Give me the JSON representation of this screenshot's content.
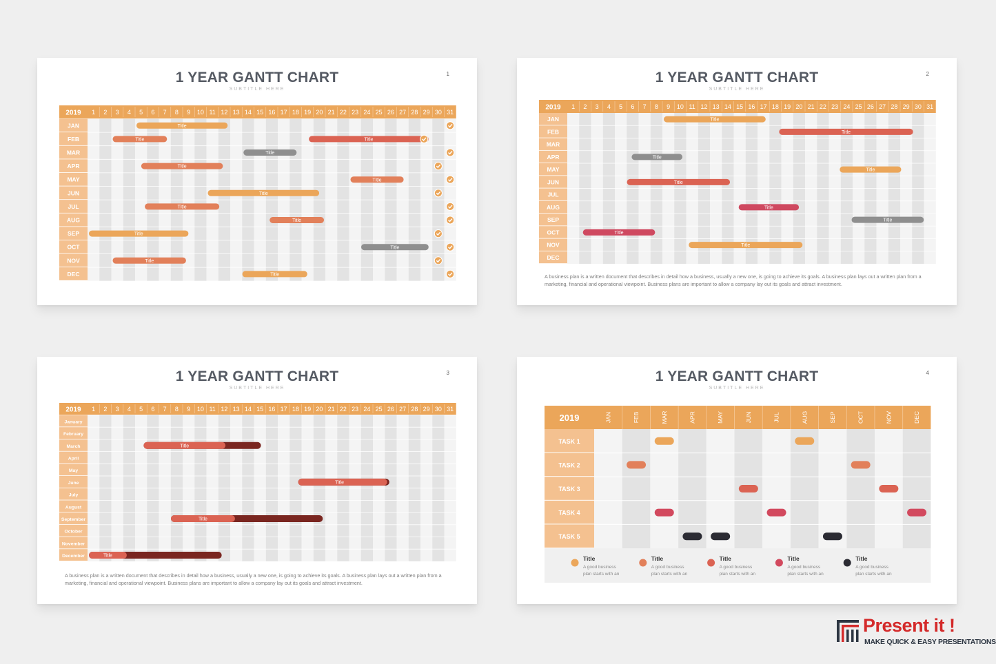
{
  "slides": [
    {
      "title": "1 YEAR GANTT CHART",
      "subtitle": "SUBTITLE HERE",
      "number": "1",
      "description": ""
    },
    {
      "title": "1 YEAR GANTT CHART",
      "subtitle": "SUBTITLE HERE",
      "number": "2",
      "description": "A business plan is a written document that describes in detail how a business, usually a new one, is going to achieve its goals. A business plan lays out a written plan from a marketing, financial and operational viewpoint. Business plans are important to allow a company lay out its goals and attract investment."
    },
    {
      "title": "1 YEAR GANTT CHART",
      "subtitle": "SUBTITLE HERE",
      "number": "3",
      "description": "A business plan is a written document that describes in detail how a business, usually a new one, is going to achieve its goals. A business plan lays out a written plan from a marketing, financial and operational viewpoint. Business plans are important to allow a company lay out its goals and attract investment."
    },
    {
      "title": "1 YEAR GANTT CHART",
      "subtitle": "SUBTITLE HERE",
      "number": "4",
      "description": ""
    }
  ],
  "colors": {
    "header": "#eba65a",
    "label_bg": "#f4c190",
    "label_text": "#ffffff",
    "orange": "#eba65a",
    "coral": "#e2805a",
    "red": "#db6353",
    "gray": "#8f8f8f",
    "crimson": "#cf4960",
    "pink": "#d2495e",
    "dark": "#2b2b33",
    "darkred": "#7a2620",
    "col_a": "#f4f4f4",
    "col_b": "#e3e3e3",
    "check": "#eba65a"
  },
  "chart_data": [
    {
      "type": "gantt",
      "year": "2019",
      "days": [
        "1",
        "2",
        "3",
        "4",
        "5",
        "6",
        "7",
        "8",
        "9",
        "10",
        "11",
        "12",
        "13",
        "14",
        "15",
        "16",
        "17",
        "18",
        "19",
        "20",
        "21",
        "22",
        "23",
        "24",
        "25",
        "26",
        "27",
        "28",
        "29",
        "30",
        "31"
      ],
      "rows": [
        "JAN",
        "FEB",
        "MAR",
        "APR",
        "MAY",
        "JUN",
        "JUL",
        "AUG",
        "SEP",
        "OCT",
        "NOV",
        "DEC"
      ],
      "bars": [
        {
          "row": 0,
          "start": 5,
          "end": 11.9,
          "color": "orange",
          "label": "Title"
        },
        {
          "row": 1,
          "start": 3,
          "end": 6.8,
          "color": "coral",
          "label": "Title"
        },
        {
          "row": 1,
          "start": 19.5,
          "end": 28.8,
          "color": "red",
          "label": "Title"
        },
        {
          "row": 2,
          "start": 14,
          "end": 17.7,
          "color": "gray",
          "label": "Title"
        },
        {
          "row": 3,
          "start": 5.4,
          "end": 11.5,
          "color": "coral",
          "label": "Title"
        },
        {
          "row": 4,
          "start": 23,
          "end": 26.7,
          "color": "coral",
          "label": "Title"
        },
        {
          "row": 5,
          "start": 11,
          "end": 19.6,
          "color": "orange",
          "label": "Title"
        },
        {
          "row": 6,
          "start": 5.7,
          "end": 11.2,
          "color": "coral",
          "label": "Title"
        },
        {
          "row": 7,
          "start": 16.2,
          "end": 20,
          "color": "coral",
          "label": "Title"
        },
        {
          "row": 8,
          "start": 1,
          "end": 8.6,
          "color": "orange",
          "label": "Title"
        },
        {
          "row": 9,
          "start": 23.9,
          "end": 28.8,
          "color": "gray",
          "label": "Title"
        },
        {
          "row": 10,
          "start": 3,
          "end": 8.4,
          "color": "coral",
          "label": "Title"
        },
        {
          "row": 11,
          "start": 13.9,
          "end": 18.6,
          "color": "orange",
          "label": "Title"
        }
      ],
      "checks": [
        {
          "row": 0,
          "day": 31
        },
        {
          "row": 1,
          "day": 28.8
        },
        {
          "row": 2,
          "day": 31
        },
        {
          "row": 3,
          "day": 30
        },
        {
          "row": 4,
          "day": 31
        },
        {
          "row": 5,
          "day": 30
        },
        {
          "row": 6,
          "day": 31
        },
        {
          "row": 7,
          "day": 31
        },
        {
          "row": 8,
          "day": 30
        },
        {
          "row": 9,
          "day": 31
        },
        {
          "row": 10,
          "day": 30
        },
        {
          "row": 11,
          "day": 31
        }
      ]
    },
    {
      "type": "gantt",
      "year": "2019",
      "days": [
        "1",
        "2",
        "3",
        "4",
        "5",
        "6",
        "7",
        "8",
        "9",
        "10",
        "11",
        "12",
        "13",
        "14",
        "15",
        "16",
        "17",
        "18",
        "19",
        "20",
        "21",
        "22",
        "23",
        "24",
        "25",
        "26",
        "27",
        "28",
        "29",
        "30",
        "31"
      ],
      "rows": [
        "JAN",
        "FEB",
        "MAR",
        "APR",
        "MAY",
        "JUN",
        "JUL",
        "AUG",
        "SEP",
        "OCT",
        "NOV",
        "DEC"
      ],
      "bars": [
        {
          "row": 0,
          "start": 9,
          "end": 16.8,
          "color": "orange",
          "label": "Title"
        },
        {
          "row": 1,
          "start": 18.7,
          "end": 29.2,
          "color": "red",
          "label": "Title"
        },
        {
          "row": 3,
          "start": 6.3,
          "end": 9.8,
          "color": "gray",
          "label": "Title"
        },
        {
          "row": 4,
          "start": 23.8,
          "end": 28.2,
          "color": "orange",
          "label": "Title"
        },
        {
          "row": 5,
          "start": 5.9,
          "end": 13.8,
          "color": "red",
          "label": "Title"
        },
        {
          "row": 7,
          "start": 15.3,
          "end": 19.6,
          "color": "crimson",
          "label": "Title"
        },
        {
          "row": 8,
          "start": 24.8,
          "end": 30.1,
          "color": "gray",
          "label": "Title"
        },
        {
          "row": 9,
          "start": 2.2,
          "end": 7.5,
          "color": "crimson",
          "label": "Title"
        },
        {
          "row": 10,
          "start": 11.1,
          "end": 19.9,
          "color": "orange",
          "label": "Title"
        }
      ],
      "checks": []
    },
    {
      "type": "gantt",
      "year": "2019",
      "days": [
        "1",
        "2",
        "3",
        "4",
        "5",
        "6",
        "7",
        "8",
        "9",
        "10",
        "11",
        "12",
        "13",
        "14",
        "15",
        "16",
        "17",
        "18",
        "19",
        "20",
        "21",
        "22",
        "23",
        "24",
        "25",
        "26",
        "27",
        "28",
        "29",
        "30",
        "31"
      ],
      "rows": [
        "January",
        "February",
        "March",
        "April",
        "May",
        "June",
        "July",
        "August",
        "September",
        "October",
        "November",
        "December"
      ],
      "bars": [
        {
          "row": 2,
          "start": 5.6,
          "end": 14.7,
          "split": 11.6,
          "color": "red",
          "label": "Title"
        },
        {
          "row": 5,
          "start": 18.6,
          "end": 25.5,
          "split": 25.2,
          "color": "red",
          "label": "Title"
        },
        {
          "row": 8,
          "start": 7.9,
          "end": 19.9,
          "split": 12.4,
          "color": "red",
          "label": "Title"
        },
        {
          "row": 11,
          "start": 1,
          "end": 11.4,
          "split": 3.3,
          "color": "red",
          "label": "Title"
        }
      ],
      "checks": []
    },
    {
      "type": "timeline",
      "year": "2019",
      "months": [
        "JAN",
        "FEB",
        "MAR",
        "APR",
        "MAY",
        "JUN",
        "JUL",
        "AUG",
        "SEP",
        "OCT",
        "NOV",
        "DEC"
      ],
      "tasks": [
        "TASK 1",
        "TASK 2",
        "TASK 3",
        "TASK 4",
        "TASK 5"
      ],
      "marks": [
        {
          "task": 0,
          "month": 2,
          "color": "orange"
        },
        {
          "task": 0,
          "month": 7,
          "color": "orange"
        },
        {
          "task": 1,
          "month": 1,
          "color": "coral"
        },
        {
          "task": 1,
          "month": 9,
          "color": "coral"
        },
        {
          "task": 2,
          "month": 5,
          "color": "red"
        },
        {
          "task": 2,
          "month": 10,
          "color": "red"
        },
        {
          "task": 3,
          "month": 2,
          "color": "pink"
        },
        {
          "task": 3,
          "month": 6,
          "color": "pink"
        },
        {
          "task": 3,
          "month": 11,
          "color": "pink"
        },
        {
          "task": 4,
          "month": 3,
          "color": "dark"
        },
        {
          "task": 4,
          "month": 4,
          "color": "dark"
        },
        {
          "task": 4,
          "month": 8,
          "color": "dark"
        }
      ],
      "legend": [
        {
          "color": "orange",
          "title": "Title",
          "text1": "A good business",
          "text2": "plan starts with an"
        },
        {
          "color": "coral",
          "title": "Title",
          "text1": "A good business",
          "text2": "plan starts with an"
        },
        {
          "color": "red",
          "title": "Title",
          "text1": "A good business",
          "text2": "plan starts with an"
        },
        {
          "color": "pink",
          "title": "Title",
          "text1": "A good business",
          "text2": "plan starts with an"
        },
        {
          "color": "dark",
          "title": "Title",
          "text1": "A good business",
          "text2": "plan starts with an"
        }
      ]
    }
  ],
  "logo": {
    "brand": "Present it !",
    "tagline": "MAKE QUICK & EASY PRESENTATIONS"
  }
}
